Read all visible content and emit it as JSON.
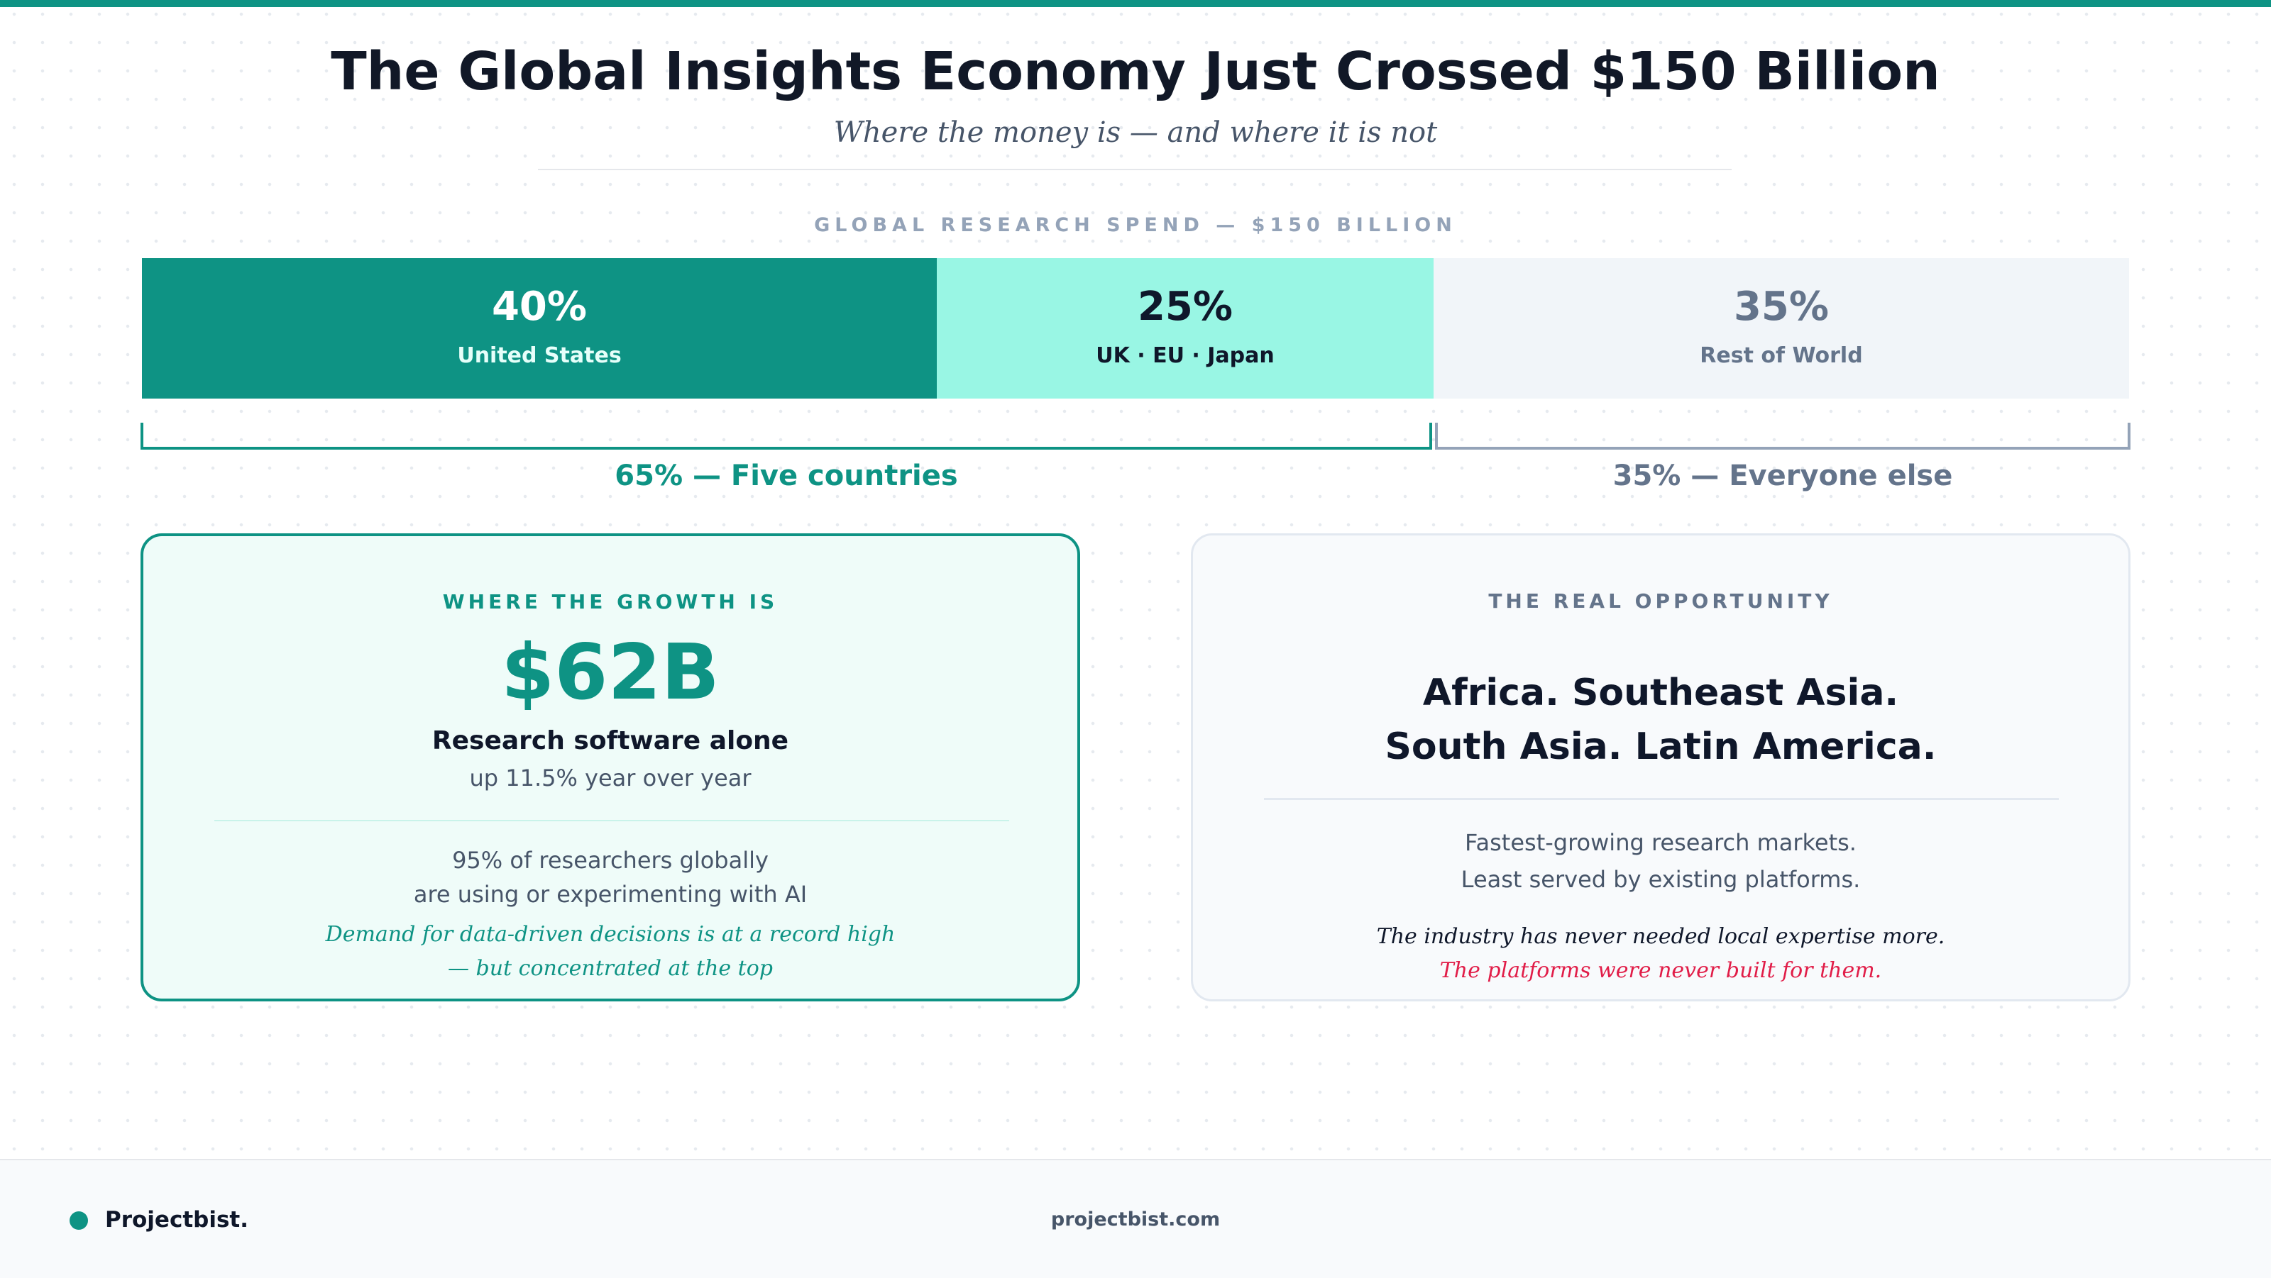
{
  "header": {
    "title": "The Global Insights Economy Just Crossed $150 Billion",
    "subtitle": "Where the money is — and where it is not"
  },
  "spend_bar": {
    "label": "GLOBAL RESEARCH SPEND — $150 BILLION",
    "segments": [
      {
        "pct": "40%",
        "name": "United States",
        "share": 0.4
      },
      {
        "pct": "25%",
        "name": "UK · EU · Japan",
        "share": 0.25
      },
      {
        "pct": "35%",
        "name": "Rest of World",
        "share": 0.35
      }
    ],
    "brackets": {
      "left": "65% — Five countries",
      "right": "35% — Everyone else"
    }
  },
  "growth_card": {
    "kicker": "WHERE THE GROWTH IS",
    "big_number": "$62B",
    "big_label": "Research software alone",
    "growth": "up 11.5% year over year",
    "stat_line1": "95% of researchers globally",
    "stat_line2": "are using or experimenting with AI",
    "note_line1": "Demand for data-driven decisions is at a record high",
    "note_line2": "— but concentrated at the top"
  },
  "opportunity_card": {
    "kicker": "THE REAL OPPORTUNITY",
    "regions_line1": "Africa. Southeast Asia.",
    "regions_line2": "South Asia. Latin America.",
    "desc_line1": "Fastest-growing research markets.",
    "desc_line2": "Least served by existing platforms.",
    "quote_line1": "The industry has never needed local expertise more.",
    "quote_line2": "The platforms were never built for them."
  },
  "footer": {
    "brand": "Projectbist.",
    "site": "projectbist.com"
  },
  "colors": {
    "accent": "#0e9384",
    "mint": "#99f6e4",
    "muted": "#f1f5f9",
    "highlight": "#e11d48"
  }
}
